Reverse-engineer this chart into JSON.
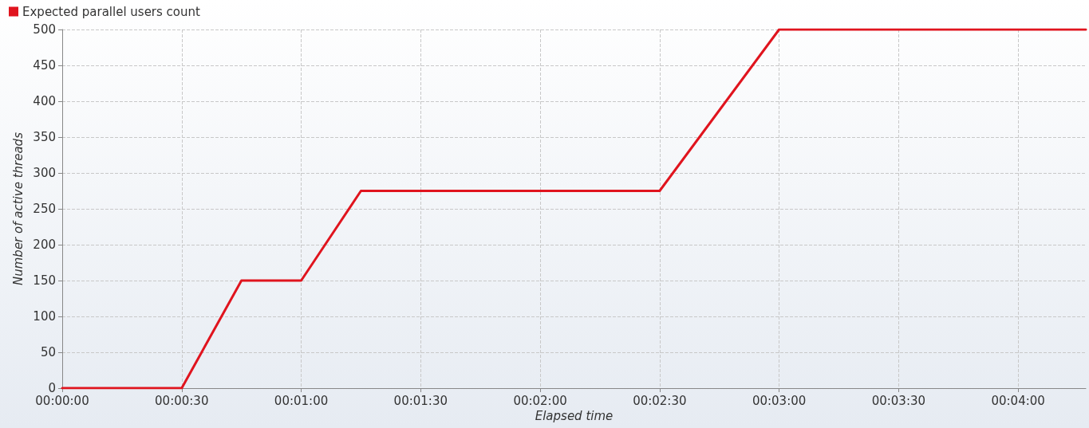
{
  "chart_data": {
    "type": "line",
    "xlabel": "Elapsed time",
    "ylabel": "Number of active threads",
    "series": [
      {
        "name": "Expected parallel users count",
        "color": "#e0141e",
        "x": [
          0,
          30,
          45,
          60,
          75,
          150,
          180,
          257
        ],
        "values": [
          0,
          0,
          150,
          150,
          275,
          275,
          500,
          500
        ]
      }
    ],
    "xlim": [
      0,
      257
    ],
    "xticks": [
      {
        "value": 0,
        "label": "00:00:00"
      },
      {
        "value": 30,
        "label": "00:00:30"
      },
      {
        "value": 60,
        "label": "00:01:00"
      },
      {
        "value": 90,
        "label": "00:01:30"
      },
      {
        "value": 120,
        "label": "00:02:00"
      },
      {
        "value": 150,
        "label": "00:02:30"
      },
      {
        "value": 180,
        "label": "00:03:00"
      },
      {
        "value": 210,
        "label": "00:03:30"
      },
      {
        "value": 240,
        "label": "00:04:00"
      }
    ],
    "ylim": [
      0,
      500
    ],
    "yticks": [
      0,
      50,
      100,
      150,
      200,
      250,
      300,
      350,
      400,
      450,
      500
    ],
    "grid": true,
    "legend": "top left",
    "marker": "none",
    "line_style": "solid"
  }
}
